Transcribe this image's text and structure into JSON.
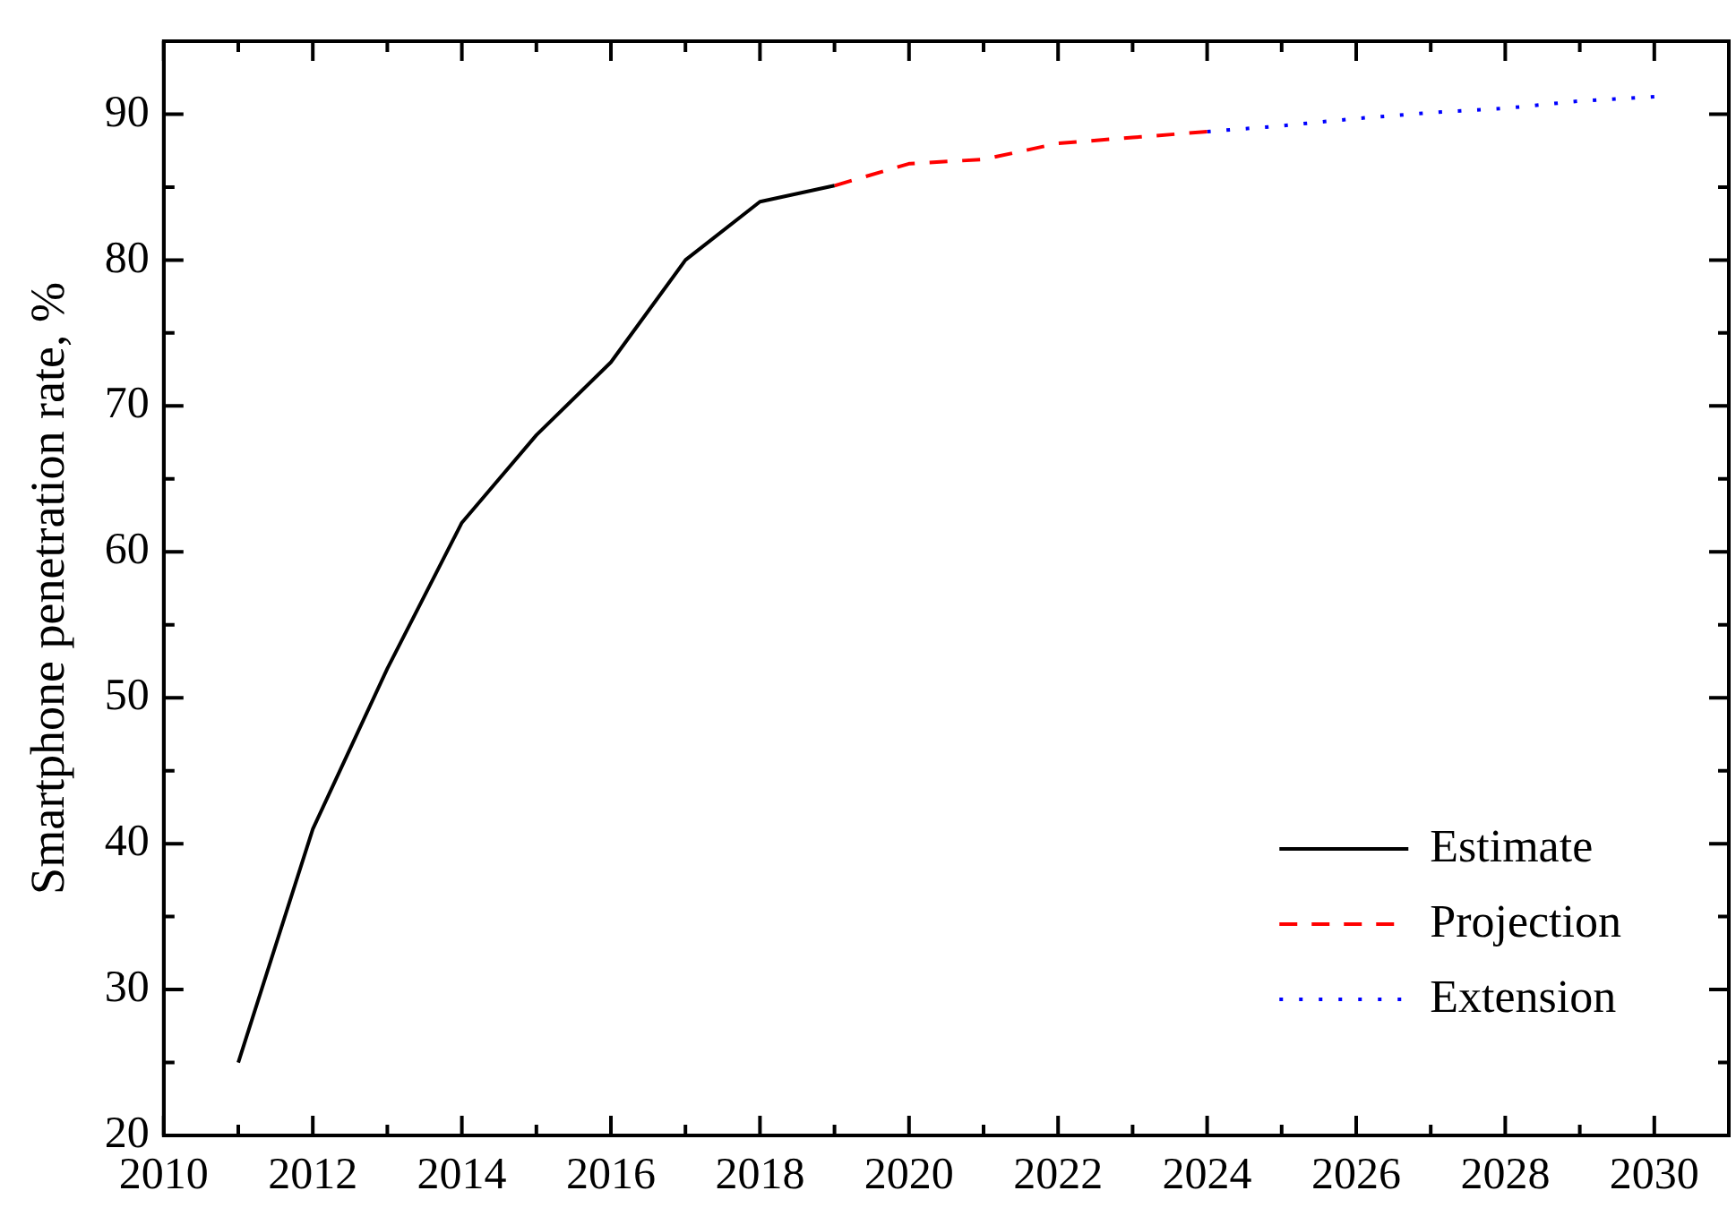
{
  "chart_data": {
    "type": "line",
    "ylabel": "Smartphone penetration rate, %",
    "xlim": [
      2010,
      2031
    ],
    "ylim": [
      20,
      95
    ],
    "xticks": [
      2010,
      {
        "value": 2011,
        "label": null
      },
      2012,
      {
        "value": 2013,
        "label": null
      },
      2014,
      {
        "value": 2015,
        "label": null
      },
      2016,
      {
        "value": 2017,
        "label": null
      },
      2018,
      {
        "value": 2019,
        "label": null
      },
      2020,
      {
        "value": 2021,
        "label": null
      },
      2022,
      {
        "value": 2023,
        "label": null
      },
      2024,
      {
        "value": 2025,
        "label": null
      },
      2026,
      {
        "value": 2027,
        "label": null
      },
      2028,
      {
        "value": 2029,
        "label": null
      },
      2030
    ],
    "yticks": [
      20,
      {
        "value": 25,
        "label": null
      },
      30,
      {
        "value": 35,
        "label": null
      },
      40,
      {
        "value": 45,
        "label": null
      },
      50,
      {
        "value": 55,
        "label": null
      },
      60,
      {
        "value": 65,
        "label": null
      },
      70,
      {
        "value": 75,
        "label": null
      },
      80,
      {
        "value": 85,
        "label": null
      },
      90
    ],
    "grid": false,
    "legend": "bottom right",
    "marker": "none",
    "series": [
      {
        "name": "Estimate",
        "color": "#000000",
        "line_style": "solid",
        "x": [
          2011,
          2012,
          2013,
          2014,
          2015,
          2016,
          2017,
          2018,
          2019
        ],
        "values": [
          25,
          41,
          52,
          62,
          68,
          73,
          80,
          84,
          85.1
        ]
      },
      {
        "name": "Projection",
        "color": "#ff0000",
        "line_style": "dashed",
        "x": [
          2019,
          2020,
          2021,
          2022,
          2023,
          2024
        ],
        "values": [
          85.1,
          86.6,
          86.9,
          88,
          88.4,
          88.8
        ]
      },
      {
        "name": "Extension",
        "color": "#0000ff",
        "line_style": "dotted",
        "x": [
          2024,
          2025,
          2026,
          2027,
          2028,
          2029,
          2030
        ],
        "values": [
          88.8,
          89.2,
          89.7,
          90.1,
          90.4,
          90.9,
          91.2
        ]
      }
    ]
  }
}
